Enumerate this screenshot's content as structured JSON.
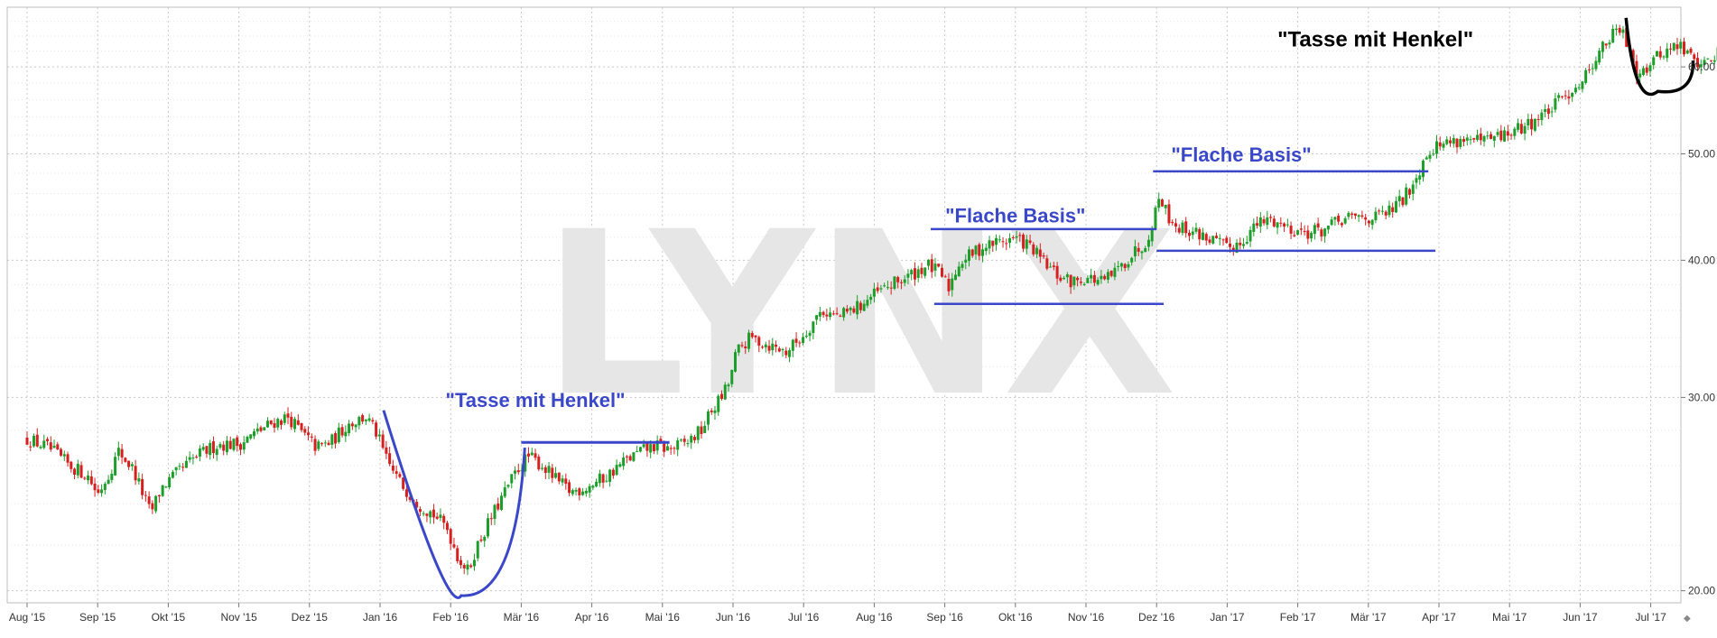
{
  "chart_data": {
    "type": "candlestick",
    "watermark": "LYNX",
    "y_scale": "log",
    "ylim": [
      19.5,
      68
    ],
    "y_ticks": [
      {
        "value": 20,
        "label": "20.00"
      },
      {
        "value": 30,
        "label": "30.00"
      },
      {
        "value": 40,
        "label": "40.00"
      },
      {
        "value": 50,
        "label": "50.00"
      },
      {
        "value": 60,
        "label": "60.00"
      }
    ],
    "x_ticks": [
      "Aug '15",
      "Sep '15",
      "Okt '15",
      "Nov '15",
      "Dez '15",
      "Jan '16",
      "Feb '16",
      "Mär '16",
      "Apr '16",
      "Mai '16",
      "Jun '16",
      "Jul '16",
      "Aug '16",
      "Sep '16",
      "Okt '16",
      "Nov '16",
      "Dez '16",
      "Jan '17",
      "Feb '17",
      "Mär '17",
      "Apr '17",
      "Mai '17",
      "Jun '17",
      "Jul '17"
    ],
    "price_path": [
      [
        0,
        27.5
      ],
      [
        0.3,
        27.0
      ],
      [
        0.6,
        26.0
      ],
      [
        0.85,
        25.5
      ],
      [
        1.0,
        24.5
      ],
      [
        1.15,
        25.5
      ],
      [
        1.3,
        26.8
      ],
      [
        1.5,
        25.8
      ],
      [
        1.75,
        23.5
      ],
      [
        1.9,
        24.8
      ],
      [
        2.1,
        25.5
      ],
      [
        2.4,
        26.5
      ],
      [
        2.7,
        27.2
      ],
      [
        3.0,
        27.2
      ],
      [
        3.3,
        28.0
      ],
      [
        3.5,
        28.5
      ],
      [
        3.7,
        28.8
      ],
      [
        3.9,
        27.8
      ],
      [
        4.1,
        27.0
      ],
      [
        4.3,
        27.3
      ],
      [
        4.55,
        28.4
      ],
      [
        4.8,
        28.8
      ],
      [
        4.95,
        27.8
      ],
      [
        5.1,
        26.2
      ],
      [
        5.3,
        25.0
      ],
      [
        5.55,
        24.0
      ],
      [
        5.75,
        23.5
      ],
      [
        5.95,
        22.8
      ],
      [
        6.1,
        21.5
      ],
      [
        6.25,
        20.8
      ],
      [
        6.35,
        21.8
      ],
      [
        6.5,
        22.8
      ],
      [
        6.65,
        23.8
      ],
      [
        6.8,
        24.8
      ],
      [
        6.95,
        25.8
      ],
      [
        7.1,
        26.5
      ],
      [
        7.3,
        26.0
      ],
      [
        7.5,
        25.2
      ],
      [
        7.7,
        24.6
      ],
      [
        7.95,
        24.9
      ],
      [
        8.2,
        25.4
      ],
      [
        8.45,
        26.2
      ],
      [
        8.7,
        26.8
      ],
      [
        8.9,
        27.1
      ],
      [
        9.1,
        26.9
      ],
      [
        9.35,
        27.3
      ],
      [
        9.55,
        28.0
      ],
      [
        9.7,
        29.2
      ],
      [
        9.85,
        30.1
      ],
      [
        9.95,
        31.0
      ],
      [
        10.05,
        33.0
      ],
      [
        10.25,
        34.0
      ],
      [
        10.5,
        33.5
      ],
      [
        10.75,
        33.0
      ],
      [
        11.0,
        34.2
      ],
      [
        11.25,
        36.0
      ],
      [
        11.5,
        35.5
      ],
      [
        11.75,
        36.2
      ],
      [
        12.0,
        37.2
      ],
      [
        12.25,
        38.0
      ],
      [
        12.5,
        38.7
      ],
      [
        12.75,
        39.6
      ],
      [
        12.95,
        38.8
      ],
      [
        13.05,
        37.7
      ],
      [
        13.2,
        39.8
      ],
      [
        13.5,
        41.0
      ],
      [
        13.75,
        41.6
      ],
      [
        14.0,
        41.9
      ],
      [
        14.2,
        41.2
      ],
      [
        14.4,
        39.8
      ],
      [
        14.6,
        38.7
      ],
      [
        14.8,
        38.2
      ],
      [
        15.0,
        38.6
      ],
      [
        15.25,
        38.2
      ],
      [
        15.45,
        39.2
      ],
      [
        15.65,
        40.5
      ],
      [
        15.85,
        41.6
      ],
      [
        15.95,
        43.5
      ],
      [
        16.05,
        46.0
      ],
      [
        16.15,
        44.0
      ],
      [
        16.3,
        42.9
      ],
      [
        16.55,
        42.4
      ],
      [
        16.8,
        41.7
      ],
      [
        17.0,
        41.0
      ],
      [
        17.2,
        41.6
      ],
      [
        17.4,
        43.0
      ],
      [
        17.6,
        43.6
      ],
      [
        17.85,
        42.9
      ],
      [
        18.1,
        42.4
      ],
      [
        18.35,
        42.6
      ],
      [
        18.6,
        43.4
      ],
      [
        18.85,
        43.8
      ],
      [
        19.1,
        43.7
      ],
      [
        19.3,
        44.3
      ],
      [
        19.5,
        45.5
      ],
      [
        19.7,
        48.0
      ],
      [
        19.85,
        50.5
      ],
      [
        20.1,
        51.2
      ],
      [
        20.35,
        51.6
      ],
      [
        20.6,
        51.2
      ],
      [
        20.85,
        51.8
      ],
      [
        21.1,
        52.5
      ],
      [
        21.35,
        53.6
      ],
      [
        21.6,
        55.0
      ],
      [
        21.85,
        57.0
      ],
      [
        22.05,
        58.5
      ],
      [
        22.2,
        61.0
      ],
      [
        22.4,
        63.5
      ],
      [
        22.55,
        65.0
      ],
      [
        22.7,
        62.5
      ],
      [
        22.8,
        59.5
      ],
      [
        22.95,
        60.0
      ],
      [
        23.15,
        61.8
      ],
      [
        23.4,
        62.8
      ],
      [
        23.6,
        61.0
      ],
      [
        23.75,
        60.3
      ],
      [
        23.9,
        61.5
      ],
      [
        24.05,
        62.7
      ],
      [
        24.2,
        62.5
      ]
    ],
    "annotations": [
      {
        "text": "\"Tasse mit Henkel\"",
        "color": "#3a47c8",
        "shape": "cup with handle",
        "cup_from": "Jan '16",
        "cup_bottom": 19.8,
        "handle_level": 27.3
      },
      {
        "text": "\"Flache Basis\"",
        "color": "#3a47c8",
        "shape": "flat base",
        "top": 42.7,
        "bottom": 36.5
      },
      {
        "text": "\"Flache Basis\"",
        "color": "#3a47c8",
        "shape": "flat base",
        "top": 48.2,
        "bottom": 40.8
      },
      {
        "text": "\"Tasse mit Henkel\"",
        "color": "#000000",
        "shape": "cup with handle",
        "cup_bottom": 57.0,
        "handle_level": 63.5
      }
    ],
    "colors": {
      "up": "#1d9e2a",
      "down": "#d62020",
      "annotation_blue": "#3a47c8",
      "annotation_black": "#000000",
      "grid": "#c8c8c8",
      "watermark": "#e6e6e6"
    },
    "grid": true
  }
}
